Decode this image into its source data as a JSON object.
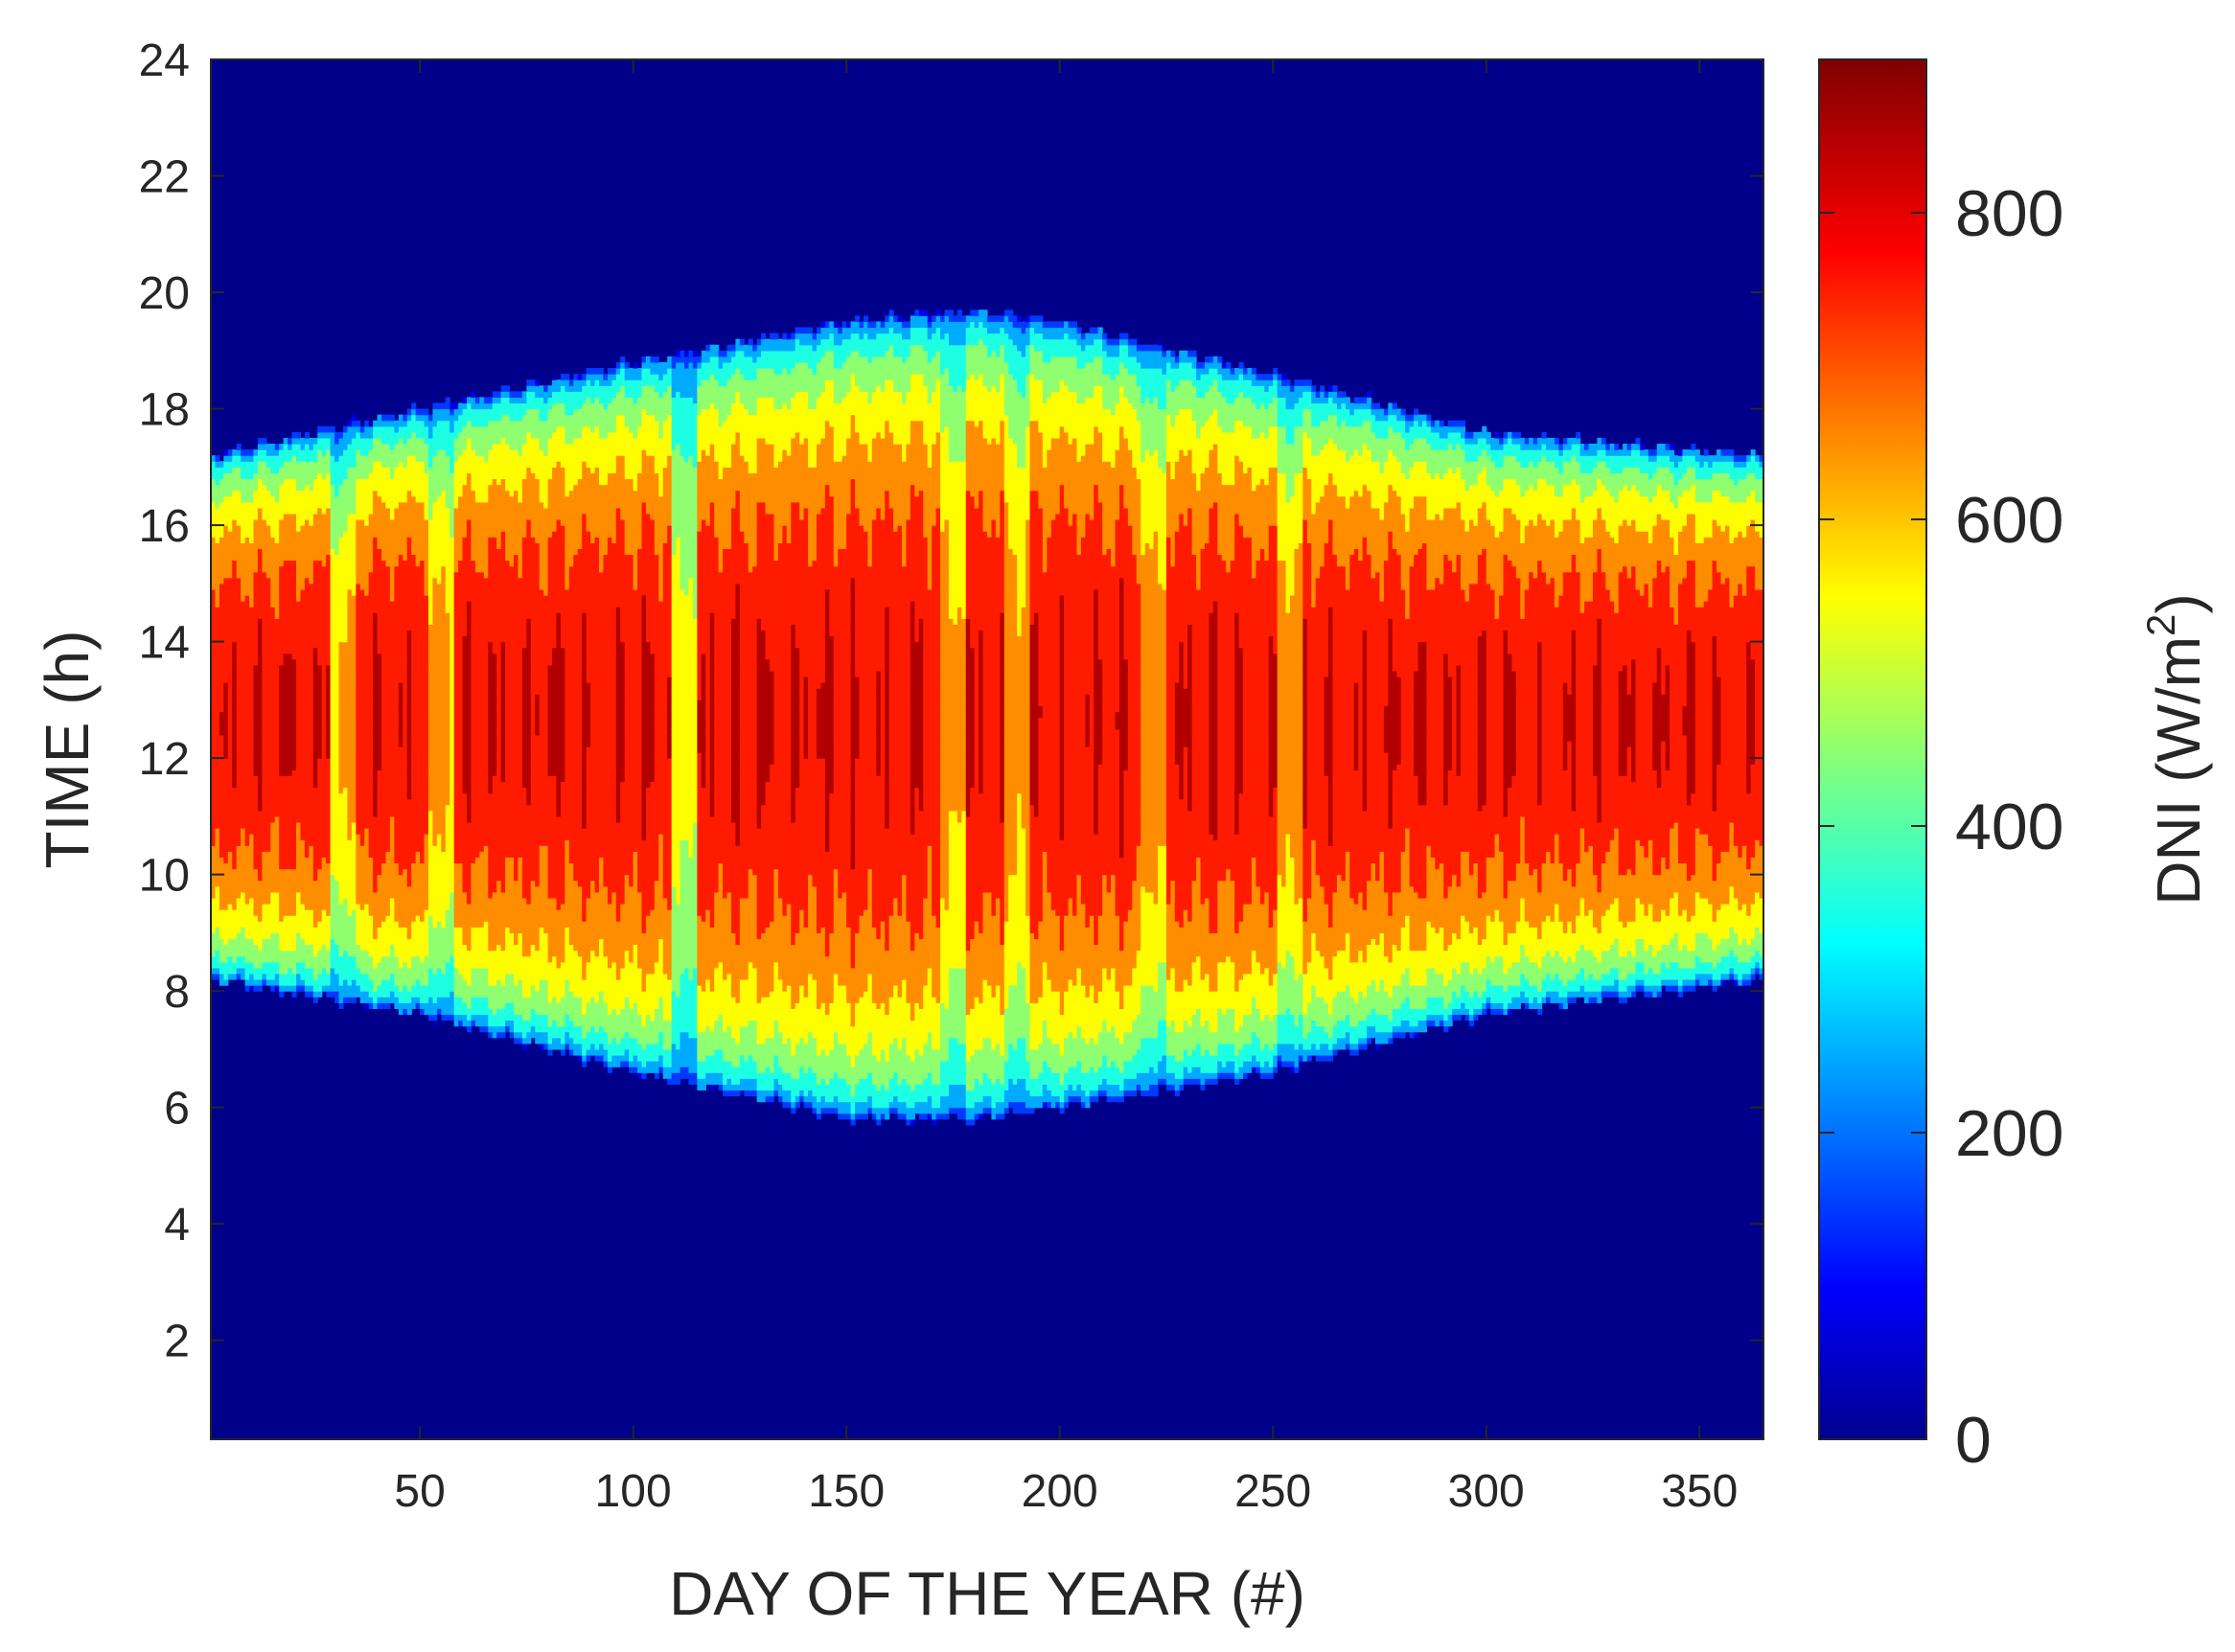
{
  "chart_data": {
    "type": "heatmap",
    "subtype": "filled-contour",
    "title": "",
    "xlabel": "DAY OF THE YEAR (#)",
    "ylabel": "TIME (h)",
    "xlim": [
      1,
      365
    ],
    "ylim": [
      0.3,
      24
    ],
    "xticks": [
      50,
      100,
      150,
      200,
      250,
      300,
      350
    ],
    "yticks": [
      2,
      4,
      6,
      8,
      10,
      12,
      14,
      16,
      18,
      20,
      22,
      24
    ],
    "colorbar": {
      "label_main": "DNI (W/m",
      "label_sup": "2",
      "label_end": ")",
      "range": [
        0,
        900
      ],
      "ticks": [
        0,
        200,
        400,
        600,
        800
      ],
      "colormap": "jet"
    },
    "contour_levels": [
      50,
      100,
      200,
      300,
      400,
      500,
      600,
      700,
      800
    ],
    "grid": false,
    "legend": "colorbar-right",
    "data_description": {
      "value_range": [
        0,
        900
      ],
      "units": "W/m2",
      "daylight_window_hours": [
        {
          "day": 1,
          "sunrise": 8.2,
          "sunset": 17.2
        },
        {
          "day": 50,
          "sunrise": 7.6,
          "sunset": 18.0
        },
        {
          "day": 100,
          "sunrise": 6.6,
          "sunset": 18.8
        },
        {
          "day": 150,
          "sunrise": 5.8,
          "sunset": 19.5
        },
        {
          "day": 180,
          "sunrise": 5.8,
          "sunset": 19.7
        },
        {
          "day": 200,
          "sunrise": 6.0,
          "sunset": 19.5
        },
        {
          "day": 250,
          "sunrise": 6.6,
          "sunset": 18.6
        },
        {
          "day": 300,
          "sunrise": 7.6,
          "sunset": 17.6
        },
        {
          "day": 365,
          "sunrise": 8.2,
          "sunset": 17.2
        }
      ],
      "peak_time_hours": 12.5,
      "peak_dni": 880
    }
  }
}
